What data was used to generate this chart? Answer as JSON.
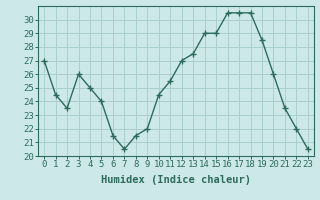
{
  "x": [
    0,
    1,
    2,
    3,
    4,
    5,
    6,
    7,
    8,
    9,
    10,
    11,
    12,
    13,
    14,
    15,
    16,
    17,
    18,
    19,
    20,
    21,
    22,
    23
  ],
  "y": [
    27,
    24.5,
    23.5,
    26,
    25,
    24,
    21.5,
    20.5,
    21.5,
    22,
    24.5,
    25.5,
    27,
    27.5,
    29,
    29,
    30.5,
    30.5,
    30.5,
    28.5,
    26,
    23.5,
    22,
    20.5
  ],
  "line_color": "#2e6b5e",
  "marker": "+",
  "marker_size": 4,
  "marker_lw": 1.0,
  "line_width": 1.0,
  "bg_color": "#cce8e8",
  "grid_color": "#aacfcf",
  "xlabel": "Humidex (Indice chaleur)",
  "xlim": [
    -0.5,
    23.5
  ],
  "ylim": [
    20,
    31
  ],
  "yticks": [
    20,
    21,
    22,
    23,
    24,
    25,
    26,
    27,
    28,
    29,
    30
  ],
  "xticks": [
    0,
    1,
    2,
    3,
    4,
    5,
    6,
    7,
    8,
    9,
    10,
    11,
    12,
    13,
    14,
    15,
    16,
    17,
    18,
    19,
    20,
    21,
    22,
    23
  ],
  "tick_label_fontsize": 6.5,
  "xlabel_fontsize": 7.5
}
